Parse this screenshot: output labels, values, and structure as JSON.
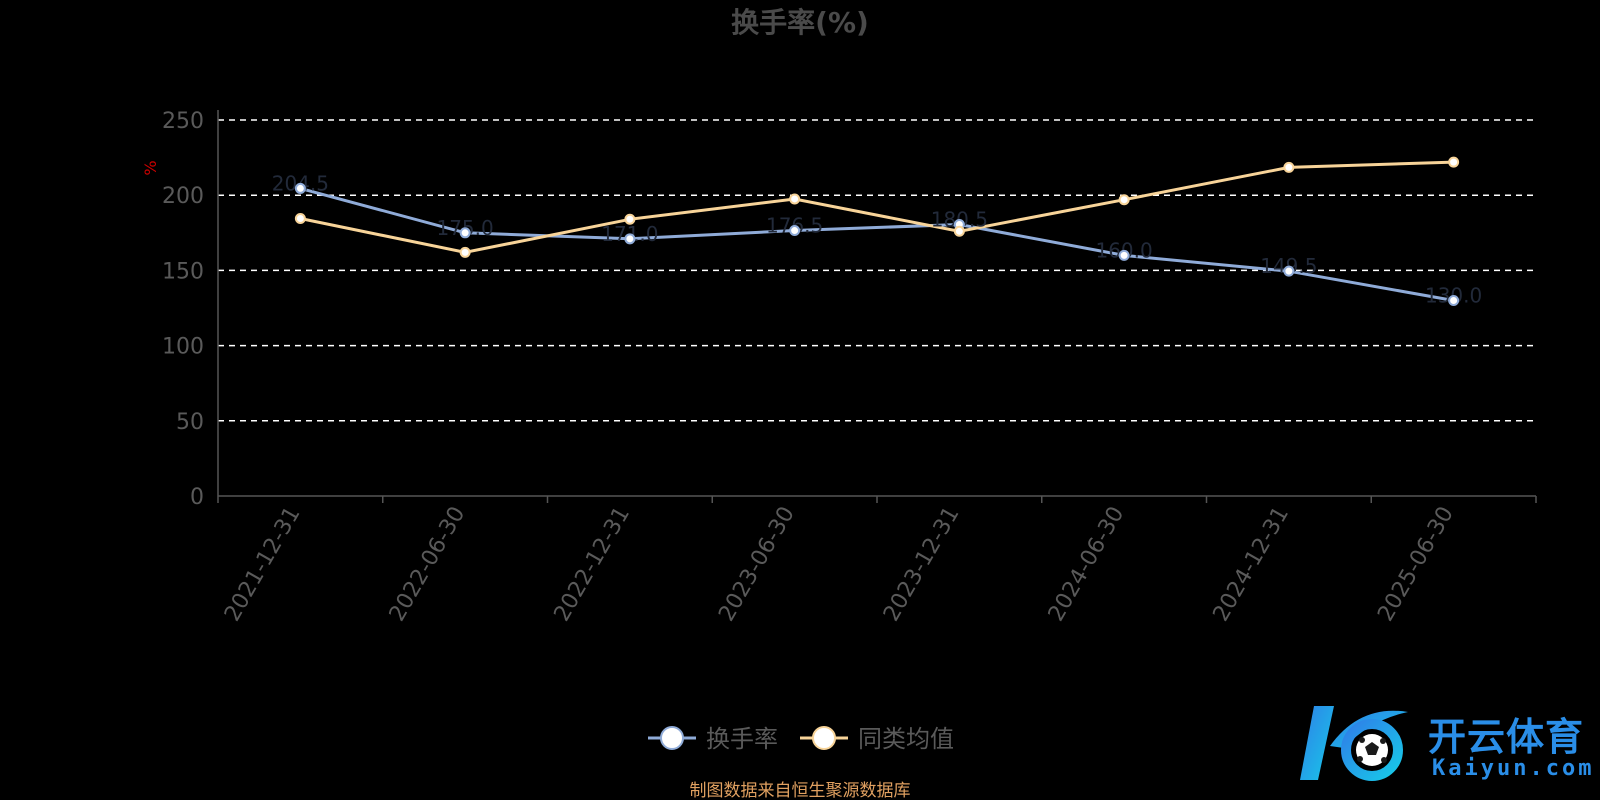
{
  "chart_data": {
    "type": "line",
    "title": "换手率(%)",
    "ylabel": "%",
    "ylim": [
      0,
      250
    ],
    "yticks": [
      0,
      50,
      100,
      150,
      200,
      250
    ],
    "grid": "horizontal dashed",
    "legend_position": "bottom-center",
    "x": [
      "2021-12-31",
      "2022-06-30",
      "2022-12-31",
      "2023-06-30",
      "2023-12-31",
      "2024-06-30",
      "2024-12-31",
      "2025-06-30"
    ],
    "series": [
      {
        "name": "换手率",
        "color": "#8fabd8",
        "values": [
          204.5,
          175.0,
          171.0,
          176.5,
          180.5,
          160.0,
          149.5,
          130.0
        ],
        "labels": [
          "204.5",
          "175.0",
          "171.0",
          "176.5",
          "180.5",
          "160.0",
          "149.5",
          "130.0"
        ]
      },
      {
        "name": "同类均值",
        "color": "#f8d499",
        "values": [
          184.5,
          162.0,
          184.0,
          197.5,
          176.0,
          197.0,
          218.5,
          222.0
        ]
      }
    ]
  },
  "source_note": "制图数据来自恒生聚源数据库",
  "watermark": {
    "text_cn": "开云体育",
    "text_en": "Kaiyun.com",
    "icon": "kaiyun-soccer-logo-icon"
  },
  "colors": {
    "background": "#000000",
    "axis": "#555555",
    "tick_text": "#5a5a5a",
    "grid": "#ffffff",
    "ylabel": "#cc0000",
    "source_note": "#e0a060"
  }
}
